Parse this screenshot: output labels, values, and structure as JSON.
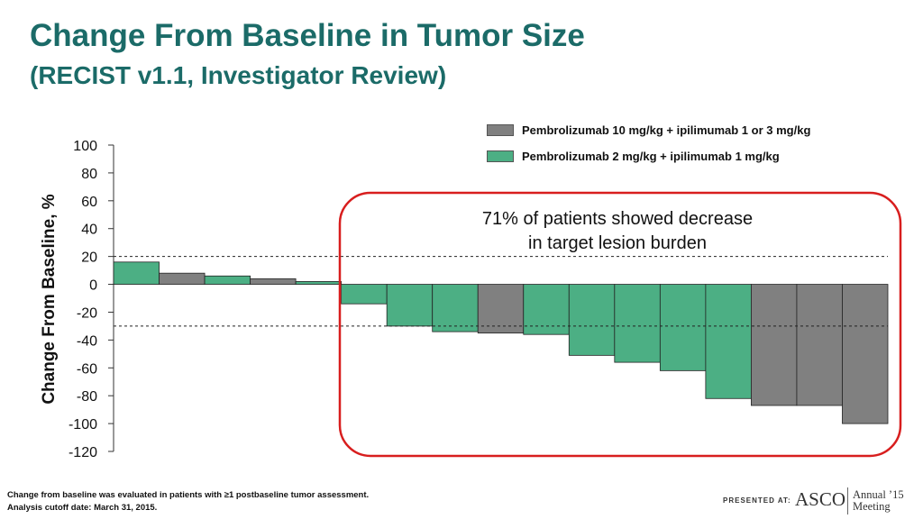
{
  "slide": {
    "title": "Change From Baseline in Tumor Size",
    "subtitle": "(RECIST v1.1, Investigator Review)",
    "callout": {
      "line1": "71% of patients showed decrease",
      "line2": "in target lesion burden"
    },
    "footnote": {
      "line1": "Change from baseline was evaluated in patients with ≥1 postbaseline tumor assessment.",
      "line2": "Analysis cutoff date: March 31, 2015."
    },
    "branding": {
      "presented_at": "PRESENTED AT:",
      "logo_text": "ASCO",
      "annual_text": "Annual ’15 Meeting"
    }
  },
  "chart_data": {
    "type": "bar",
    "ylabel": "Change From Baseline, %",
    "xlabel": "",
    "ylim": [
      -120,
      100
    ],
    "yticks": [
      100,
      80,
      60,
      40,
      20,
      0,
      -20,
      -40,
      -60,
      -80,
      -100,
      -120
    ],
    "reference_lines": [
      20,
      -30
    ],
    "legend_position": "top-right",
    "series": [
      {
        "name": "Pembrolizumab 10 mg/kg + ipilimumab 1 or 3 mg/kg",
        "color": "#808080"
      },
      {
        "name": "Pembrolizumab 2 mg/kg + ipilimumab 1 mg/kg",
        "color": "#4caf84"
      }
    ],
    "bars": [
      {
        "value": 16,
        "series": 1
      },
      {
        "value": 8,
        "series": 0
      },
      {
        "value": 6,
        "series": 1
      },
      {
        "value": 4,
        "series": 0
      },
      {
        "value": 2,
        "series": 1
      },
      {
        "value": -14,
        "series": 1
      },
      {
        "value": -30,
        "series": 1
      },
      {
        "value": -34,
        "series": 1
      },
      {
        "value": -35,
        "series": 0
      },
      {
        "value": -36,
        "series": 1
      },
      {
        "value": -51,
        "series": 1
      },
      {
        "value": -56,
        "series": 1
      },
      {
        "value": -62,
        "series": 1
      },
      {
        "value": -82,
        "series": 1
      },
      {
        "value": -87,
        "series": 0
      },
      {
        "value": -87,
        "series": 0
      },
      {
        "value": -100,
        "series": 0
      }
    ]
  }
}
